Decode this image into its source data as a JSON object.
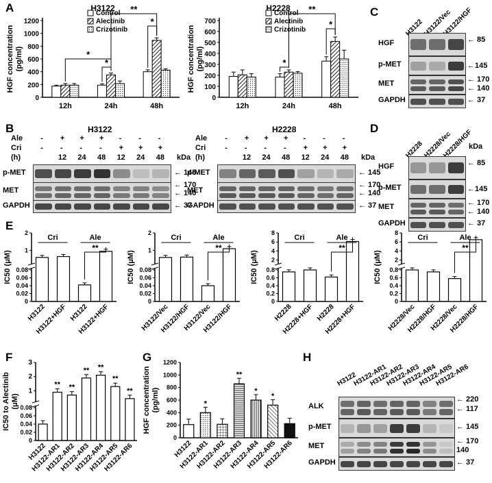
{
  "panels": {
    "A": "A",
    "B": "B",
    "C": "C",
    "D": "D",
    "E": "E",
    "F": "F",
    "G": "G",
    "H": "H"
  },
  "panelA": {
    "charts": [
      {
        "title": "H3122",
        "ylabel": "HGF concentration (pg/ml)",
        "ylabel1": "HGF concentration",
        "ylabel2": "(pg/ml)",
        "categories": [
          "12h",
          "24h",
          "48h"
        ],
        "yticks": [
          "0",
          "200",
          "400",
          "600",
          "800",
          "1000",
          "1200"
        ],
        "legend": [
          "Control",
          "Alectinib",
          "Crizotinib"
        ],
        "sig": [
          "*",
          "**",
          "*",
          "*"
        ]
      },
      {
        "title": "H2228",
        "ylabel": "HGF concentration (pg/ml)",
        "ylabel1": "HGF concentration",
        "ylabel2": "(pg/ml)",
        "categories": [
          "12h",
          "24h",
          "48h"
        ],
        "yticks": [
          "0",
          "100",
          "200",
          "300",
          "400",
          "500",
          "600",
          "700"
        ],
        "legend": [
          "Control",
          "Alectinib",
          "Crizotinib"
        ],
        "sig": [
          "*",
          "**",
          "*"
        ]
      }
    ]
  },
  "panelB": {
    "left": {
      "title": "H3122",
      "ale_label": "Ale",
      "cri_label": "Cri",
      "h_label": "(h)",
      "ale": [
        "-",
        "+",
        "+",
        "+",
        "-",
        "-",
        "-"
      ],
      "cri": [
        "-",
        "-",
        "-",
        "-",
        "+",
        "+",
        "+"
      ],
      "hours": [
        "",
        "12",
        "24",
        "48",
        "12",
        "24",
        "48"
      ],
      "rows": [
        "p-MET",
        "MET",
        "GAPDH"
      ],
      "kda_label": "kDa",
      "kda": [
        "145",
        "170",
        "140",
        "37"
      ]
    },
    "right": {
      "title": "H2228",
      "ale_label": "Ale",
      "cri_label": "Cri",
      "h_label": "(h)",
      "ale": [
        "-",
        "+",
        "+",
        "+",
        "-",
        "-",
        "-"
      ],
      "cri": [
        "-",
        "-",
        "-",
        "-",
        "+",
        "+",
        "+"
      ],
      "hours": [
        "",
        "12",
        "24",
        "48",
        "12",
        "24",
        "48"
      ],
      "rows": [
        "p-MET",
        "MET",
        "GAPDH"
      ],
      "kda_label": "kDa",
      "kda": [
        "145",
        "170",
        "140",
        "37"
      ]
    }
  },
  "panelC": {
    "lanes": [
      "H3122",
      "H3122/Vec",
      "H3122/HGF"
    ],
    "rows": [
      "HGF",
      "p-MET",
      "MET",
      "GAPDH"
    ],
    "kda": [
      "85",
      "145",
      "170",
      "140",
      "37"
    ]
  },
  "panelD": {
    "lanes": [
      "H2228",
      "H2228/Vec",
      "H2228/HGF"
    ],
    "rows": [
      "HGF",
      "p-MET",
      "MET",
      "GAPDH"
    ],
    "kda_label": "kDa",
    "kda": [
      "85",
      "145",
      "170",
      "140",
      "37"
    ]
  },
  "panelE": {
    "ylabel": "IC50 (μM)",
    "charts": [
      {
        "yticks_top": [
          "1",
          "2"
        ],
        "yticks_bot": [
          "0",
          "0.02",
          "0.04",
          "0.06",
          "0.08"
        ],
        "groups": [
          "Cri",
          "Ale"
        ],
        "sig": "**",
        "categories": [
          "H3122",
          "H3122+HGF",
          "H3122",
          "H3122+HGF"
        ]
      },
      {
        "yticks_top": [
          "1",
          "2"
        ],
        "yticks_bot": [
          "0",
          "0.02",
          "0.04",
          "0.06",
          "0.08"
        ],
        "groups": [
          "Cri",
          "Ale"
        ],
        "sig": "**",
        "categories": [
          "H3122/Vec",
          "H3122/HGF",
          "H3122/Vec",
          "H3122/HGF"
        ]
      },
      {
        "yticks_top": [
          "2",
          "4",
          "6",
          "8"
        ],
        "yticks_bot": [
          "0",
          "0.2",
          "0.4",
          "0.6",
          "0.8"
        ],
        "groups": [
          "Cri",
          "Ale"
        ],
        "sig": "**",
        "categories": [
          "H2228",
          "H2228+HGF",
          "H2228",
          "H2228+HGF"
        ]
      },
      {
        "yticks_top": [
          "2",
          "4",
          "6",
          "8"
        ],
        "yticks_bot": [
          "0",
          "0.2",
          "0.4",
          "0.6",
          "0.8"
        ],
        "groups": [
          "Cri",
          "Ale"
        ],
        "sig": "**",
        "categories": [
          "H2228/Vec",
          "H2228/HGF",
          "H2228/Vec",
          "H2228/HGF"
        ]
      }
    ]
  },
  "panelF": {
    "ylabel": "IC50 to Alectinib (μM)",
    "ylabel1": "IC50 to Alectinib",
    "ylabel2": "(μM)",
    "yticks_top": [
      "1",
      "2",
      "3"
    ],
    "yticks_bot": [
      "0",
      "0.02",
      "0.04",
      "0.06",
      "0.08"
    ],
    "sig": "**",
    "categories": [
      "H3122",
      "H3122-AR1",
      "H3122-AR2",
      "H3122-AR3",
      "H3122-AR4",
      "H3122-AR5",
      "H3122-AR6"
    ]
  },
  "panelG": {
    "ylabel": "HGF concentration (pg/ml)",
    "ylabel1": "HGF concentration",
    "ylabel2": "(pg/ml)",
    "yticks": [
      "0",
      "200",
      "400",
      "600",
      "800",
      "1000",
      "1200"
    ],
    "sig": [
      "*",
      "",
      "**",
      "*",
      "*",
      ""
    ],
    "categories": [
      "H3122",
      "H3122-AR1",
      "H3122-AR2",
      "H3122-AR3",
      "H3122-AR4",
      "H3122-AR5",
      "H3122-AR6"
    ]
  },
  "panelH": {
    "lanes": [
      "H3122",
      "H3122-AR1",
      "H3122-AR2",
      "H3122-AR3",
      "H3122-AR4",
      "H3122-AR5",
      "H3122-AR6"
    ],
    "rows": [
      "ALK",
      "p-MET",
      "MET",
      "GAPDH"
    ],
    "kda": [
      "220",
      "117",
      "145",
      "170",
      "140",
      "37"
    ]
  },
  "chart_data": [
    {
      "type": "bar",
      "title": "H3122",
      "ylabel": "HGF concentration (pg/ml)",
      "categories": [
        "12h",
        "24h",
        "48h"
      ],
      "ylim": [
        0,
        1200
      ],
      "series": [
        {
          "name": "Control",
          "values": [
            175,
            190,
            400
          ]
        },
        {
          "name": "Alectinib",
          "values": [
            190,
            350,
            890
          ]
        },
        {
          "name": "Crizotinib",
          "values": [
            190,
            215,
            425
          ]
        }
      ],
      "errors": [
        [
          15,
          20,
          30
        ],
        [
          25,
          30,
          40
        ],
        [
          25,
          40,
          20
        ]
      ]
    },
    {
      "type": "bar",
      "title": "H2228",
      "ylabel": "HGF concentration (pg/ml)",
      "categories": [
        "12h",
        "24h",
        "48h"
      ],
      "ylim": [
        0,
        700
      ],
      "series": [
        {
          "name": "Control",
          "values": [
            190,
            185,
            330
          ]
        },
        {
          "name": "Alectinib",
          "values": [
            205,
            230,
            510
          ]
        },
        {
          "name": "Crizotinib",
          "values": [
            185,
            220,
            350
          ]
        }
      ],
      "errors": [
        [
          40,
          30,
          40
        ],
        [
          45,
          20,
          40
        ],
        [
          30,
          15,
          80
        ]
      ]
    },
    {
      "type": "bar",
      "ylabel": "IC50 (μM)",
      "categories": [
        "H3122",
        "H3122+HGF",
        "H3122",
        "H3122+HGF"
      ],
      "values": [
        0.6,
        0.65,
        0.042,
        0.95
      ]
    },
    {
      "type": "bar",
      "ylabel": "IC50 (μM)",
      "categories": [
        "H3122/Vec",
        "H3122/HGF",
        "H3122/Vec",
        "H3122/HGF"
      ],
      "values": [
        0.6,
        0.62,
        0.04,
        1.1
      ]
    },
    {
      "type": "bar",
      "ylabel": "IC50 (μM)",
      "categories": [
        "H2228",
        "H2228+HGF",
        "H2228",
        "H2228+HGF"
      ],
      "values": [
        0.75,
        0.8,
        0.62,
        6.1
      ]
    },
    {
      "type": "bar",
      "ylabel": "IC50 (μM)",
      "categories": [
        "H2228/Vec",
        "H2228/HGF",
        "H2228/Vec",
        "H2228/HGF"
      ],
      "values": [
        0.8,
        0.75,
        0.58,
        6.5
      ]
    },
    {
      "type": "bar",
      "ylabel": "IC50 to Alectinib (μM)",
      "categories": [
        "H3122",
        "H3122-AR1",
        "H3122-AR2",
        "H3122-AR3",
        "H3122-AR4",
        "H3122-AR5",
        "H3122-AR6"
      ],
      "values": [
        0.04,
        0.9,
        0.7,
        1.9,
        2.1,
        1.3,
        0.45
      ]
    },
    {
      "type": "bar",
      "ylabel": "HGF concentration (pg/ml)",
      "categories": [
        "H3122",
        "H3122-AR1",
        "H3122-AR2",
        "H3122-AR3",
        "H3122-AR4",
        "H3122-AR5",
        "H3122-AR6"
      ],
      "values": [
        210,
        400,
        215,
        860,
        600,
        520,
        225
      ],
      "ylim": [
        0,
        1200
      ]
    }
  ]
}
